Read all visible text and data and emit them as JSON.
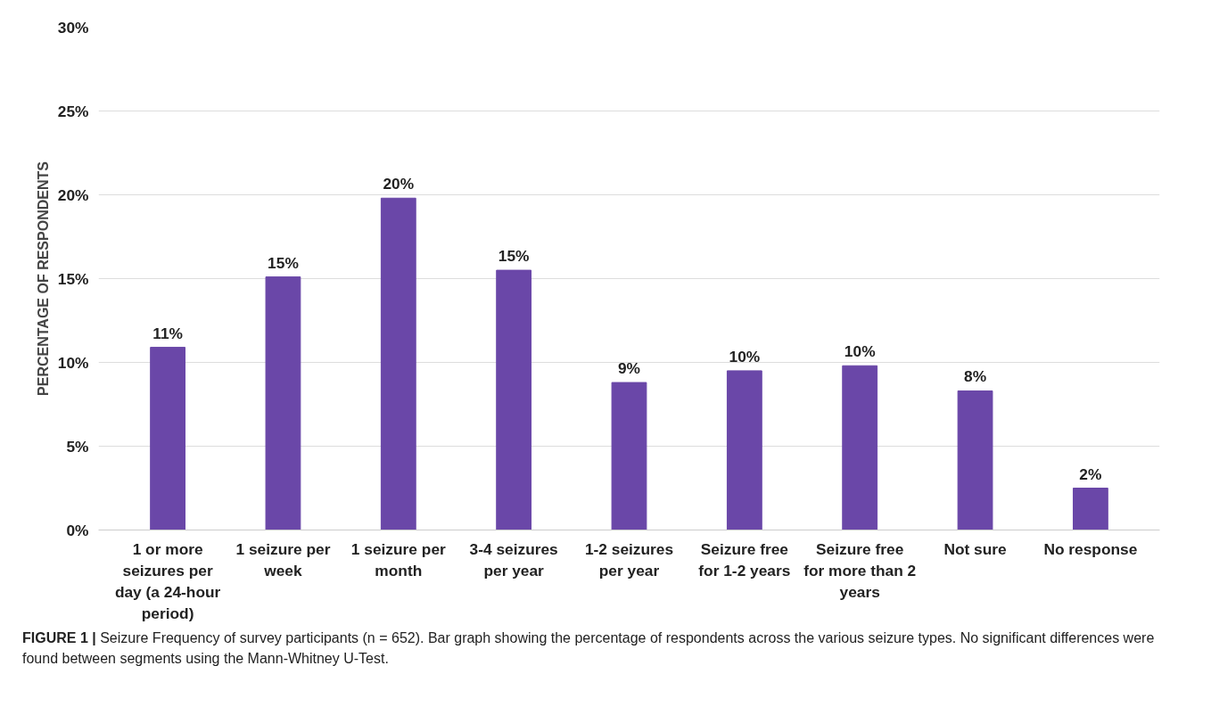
{
  "chart_data": {
    "type": "bar",
    "ylabel": "PERCENTAGE OF RESPONDENTS",
    "categories": [
      "1 or more seizures per day (a 24-hour period)",
      "1 seizure per week",
      "1 seizure per month",
      "3-4 seizures per year",
      "1-2 seizures per year",
      "Seizure free for 1-2 years",
      "Seizure free for more than 2 years",
      "Not sure",
      "No response"
    ],
    "values": [
      10.9,
      15.1,
      19.8,
      15.5,
      8.8,
      9.5,
      9.8,
      8.3,
      2.5
    ],
    "value_labels": [
      "11%",
      "15%",
      "20%",
      "15%",
      "9%",
      "10%",
      "10%",
      "8%",
      "2%"
    ],
    "color": "#6a47a8",
    "ylim": [
      0,
      30
    ],
    "yticks": [
      {
        "value": 0,
        "label": "0%"
      },
      {
        "value": 5,
        "label": "5%"
      },
      {
        "value": 10,
        "label": "10%"
      },
      {
        "value": 15,
        "label": "15%"
      },
      {
        "value": 20,
        "label": "20%"
      },
      {
        "value": 25,
        "label": "25%"
      },
      {
        "value": 30,
        "label": "30%"
      }
    ],
    "grid": "y",
    "annotations": [
      "FIGURE 1 | Seizure Frequency of survey participants (n = 652). Bar graph showing the percentage of respondents across the various seizure types. No significant differences were found between segments using the Mann-Whitney U-Test."
    ]
  }
}
